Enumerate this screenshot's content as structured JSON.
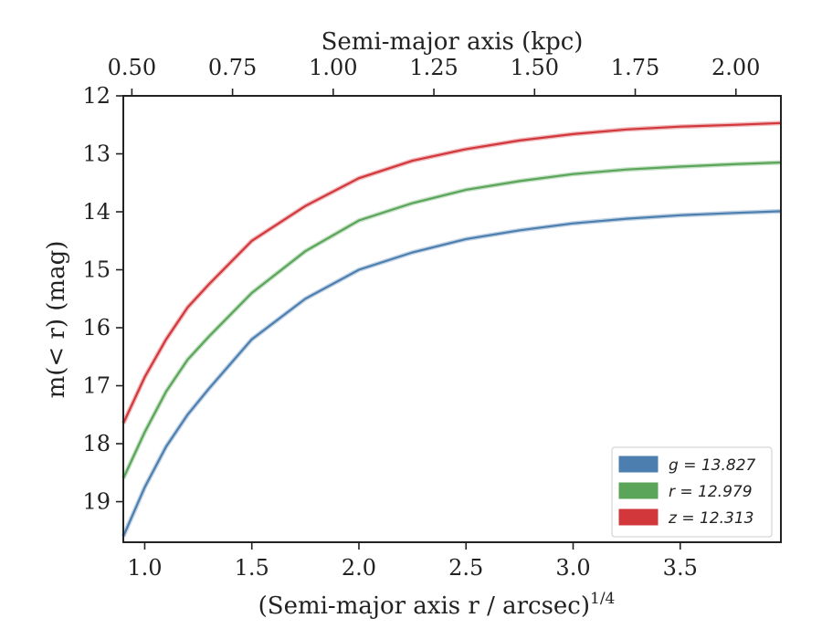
{
  "chart_data": {
    "type": "line",
    "xlabel": "(Semi-major axis r / arcsec)",
    "xlabel_sup": "1/4",
    "ylabel": "m(< r) (mag)",
    "top_xlabel": "Semi-major axis (kpc)",
    "xlim": [
      0.9,
      3.97
    ],
    "ylim": [
      19.7,
      12.0
    ],
    "y_inverted": true,
    "x_ticks": [
      "1.0",
      "1.5",
      "2.0",
      "2.5",
      "3.0",
      "3.5"
    ],
    "y_ticks": [
      "12",
      "13",
      "14",
      "15",
      "16",
      "17",
      "18",
      "19"
    ],
    "top_ticks": [
      "0.50",
      "0.75",
      "1.00",
      "1.25",
      "1.50",
      "1.75",
      "2.00"
    ],
    "top_tick_positions_x": [
      0.94,
      1.41,
      1.88,
      2.35,
      2.82,
      3.29,
      3.76
    ],
    "legend_position": "lower-right",
    "grid": false,
    "series": [
      {
        "name": "g = 13.827",
        "color": "#4c7fb0",
        "x": [
          0.9,
          1.0,
          1.1,
          1.2,
          1.3,
          1.5,
          1.75,
          2.0,
          2.25,
          2.5,
          2.75,
          3.0,
          3.25,
          3.5,
          3.75,
          3.97
        ],
        "y": [
          19.6,
          18.75,
          18.05,
          17.5,
          17.05,
          16.2,
          15.5,
          15.0,
          14.7,
          14.47,
          14.32,
          14.2,
          14.12,
          14.06,
          14.02,
          13.99
        ]
      },
      {
        "name": "r = 12.979",
        "color": "#5aa55a",
        "x": [
          0.9,
          1.0,
          1.1,
          1.2,
          1.3,
          1.5,
          1.75,
          2.0,
          2.25,
          2.5,
          2.75,
          3.0,
          3.25,
          3.5,
          3.75,
          3.97
        ],
        "y": [
          18.6,
          17.8,
          17.1,
          16.55,
          16.15,
          15.4,
          14.68,
          14.15,
          13.85,
          13.62,
          13.47,
          13.35,
          13.27,
          13.22,
          13.18,
          13.15
        ]
      },
      {
        "name": "z = 12.313",
        "color": "#d2373c",
        "x": [
          0.9,
          1.0,
          1.1,
          1.2,
          1.3,
          1.5,
          1.75,
          2.0,
          2.25,
          2.5,
          2.75,
          3.0,
          3.25,
          3.5,
          3.75,
          3.97
        ],
        "y": [
          17.65,
          16.85,
          16.2,
          15.65,
          15.25,
          14.5,
          13.9,
          13.42,
          13.12,
          12.92,
          12.77,
          12.66,
          12.58,
          12.53,
          12.5,
          12.47
        ]
      }
    ]
  }
}
